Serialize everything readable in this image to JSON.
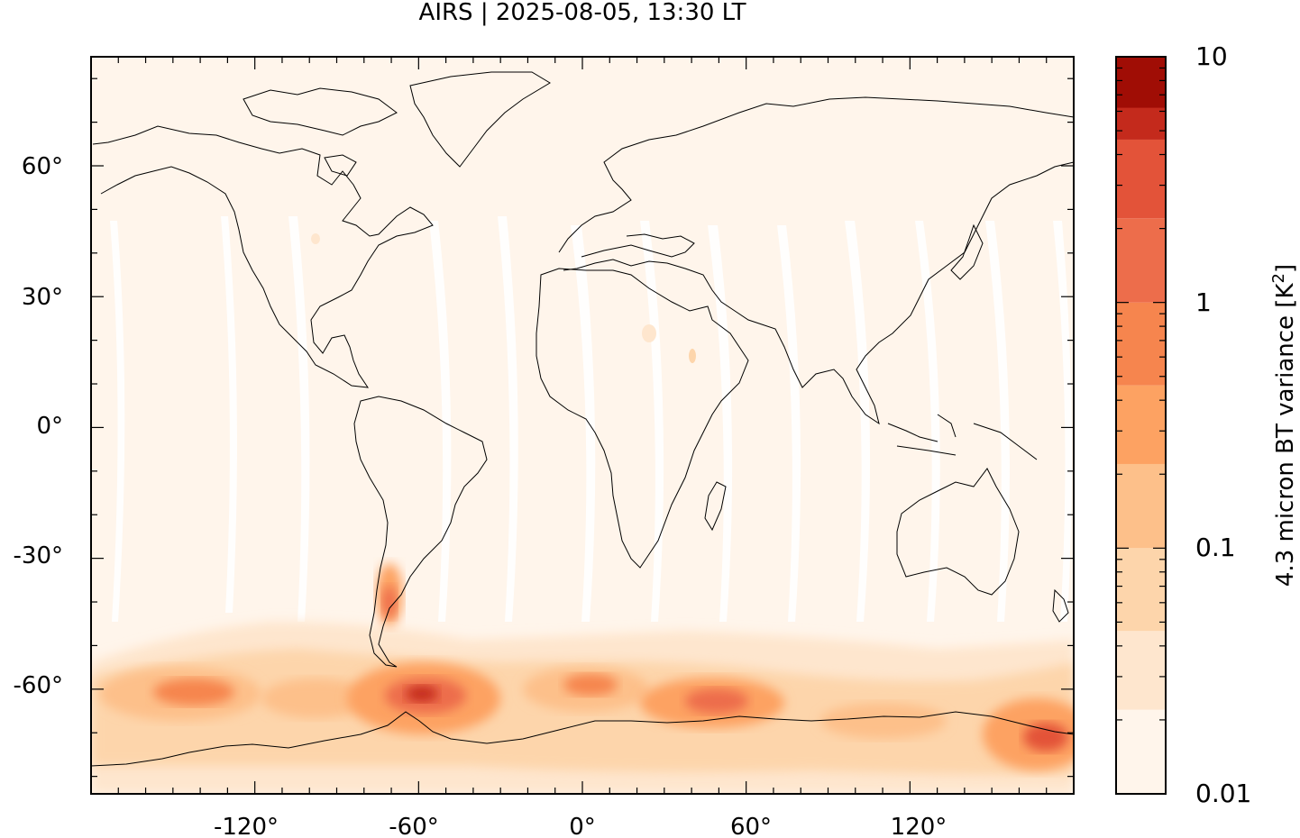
{
  "title": "AIRS | 2025-08-05, 13:30 LT",
  "map": {
    "projection": "plate carree",
    "lon_range": [
      -180,
      180
    ],
    "lat_range": [
      -84,
      85
    ],
    "x_ticks": [
      {
        "value": -120,
        "label": "-120°"
      },
      {
        "value": -60,
        "label": "-60°"
      },
      {
        "value": 0,
        "label": "0°"
      },
      {
        "value": 60,
        "label": "60°"
      },
      {
        "value": 120,
        "label": "120°"
      }
    ],
    "y_ticks": [
      {
        "value": 60,
        "label": "60°"
      },
      {
        "value": 30,
        "label": "30°"
      },
      {
        "value": 0,
        "label": "0°"
      },
      {
        "value": -30,
        "label": "-30°"
      },
      {
        "value": -60,
        "label": "-60°"
      }
    ],
    "background_color": "#fff5eb"
  },
  "colorbar": {
    "label": "4.3 micron BT variance [K",
    "label_superscript": "2",
    "label_suffix": "]",
    "scale": "log",
    "range": [
      0.01,
      10
    ],
    "tick_labels": [
      {
        "value": 10,
        "label": "10"
      },
      {
        "value": 1,
        "label": "1"
      },
      {
        "value": 0.1,
        "label": "0.1"
      },
      {
        "value": 0.01,
        "label": "0.01"
      }
    ],
    "levels": [
      {
        "from": 0.01,
        "to": 0.022,
        "color": "#fff5eb"
      },
      {
        "from": 0.022,
        "to": 0.046,
        "color": "#fee6ce"
      },
      {
        "from": 0.046,
        "to": 0.1,
        "color": "#fdd5ab"
      },
      {
        "from": 0.1,
        "to": 0.22,
        "color": "#fdc08a"
      },
      {
        "from": 0.22,
        "to": 0.46,
        "color": "#fda262"
      },
      {
        "from": 0.46,
        "to": 1.0,
        "color": "#f6854e"
      },
      {
        "from": 1.0,
        "to": 2.2,
        "color": "#ed6d4b"
      },
      {
        "from": 2.2,
        "to": 4.6,
        "color": "#e35339"
      },
      {
        "from": 4.6,
        "to": 10,
        "color": "#c42a1c"
      },
      {
        "from": 10,
        "to": 10.5,
        "color": "#a00d05"
      }
    ]
  },
  "chart_data": {
    "type": "heatmap",
    "title": "AIRS | 2025-08-05, 13:30 LT",
    "xlabel": "",
    "ylabel": "",
    "xlim": [
      -180,
      180
    ],
    "ylim": [
      -84,
      85
    ],
    "colorbar_label": "4.3 micron BT variance [K²]",
    "colorbar_scale": "log",
    "colorbar_range": [
      0.01,
      10
    ],
    "features": [
      {
        "name": "background",
        "lon": [
          -180,
          180
        ],
        "lat": [
          -40,
          85
        ],
        "value": 0.015
      },
      {
        "name": "southern ocean band",
        "lon": [
          -180,
          180
        ],
        "lat": [
          -75,
          -45
        ],
        "value": 0.15
      },
      {
        "name": "drake passage maximum",
        "lon": -60,
        "lat": -65,
        "value": 5
      },
      {
        "name": "andes patagonia",
        "lon": -70,
        "lat": -42,
        "value": 1
      },
      {
        "name": "south of tasmania",
        "lon": 165,
        "lat": -72,
        "value": 3
      },
      {
        "name": "south indian ocean",
        "lon": 40,
        "lat": -62,
        "value": 0.8
      },
      {
        "name": "south pacific",
        "lon": -150,
        "lat": -62,
        "value": 0.8
      }
    ],
    "grid": false
  }
}
